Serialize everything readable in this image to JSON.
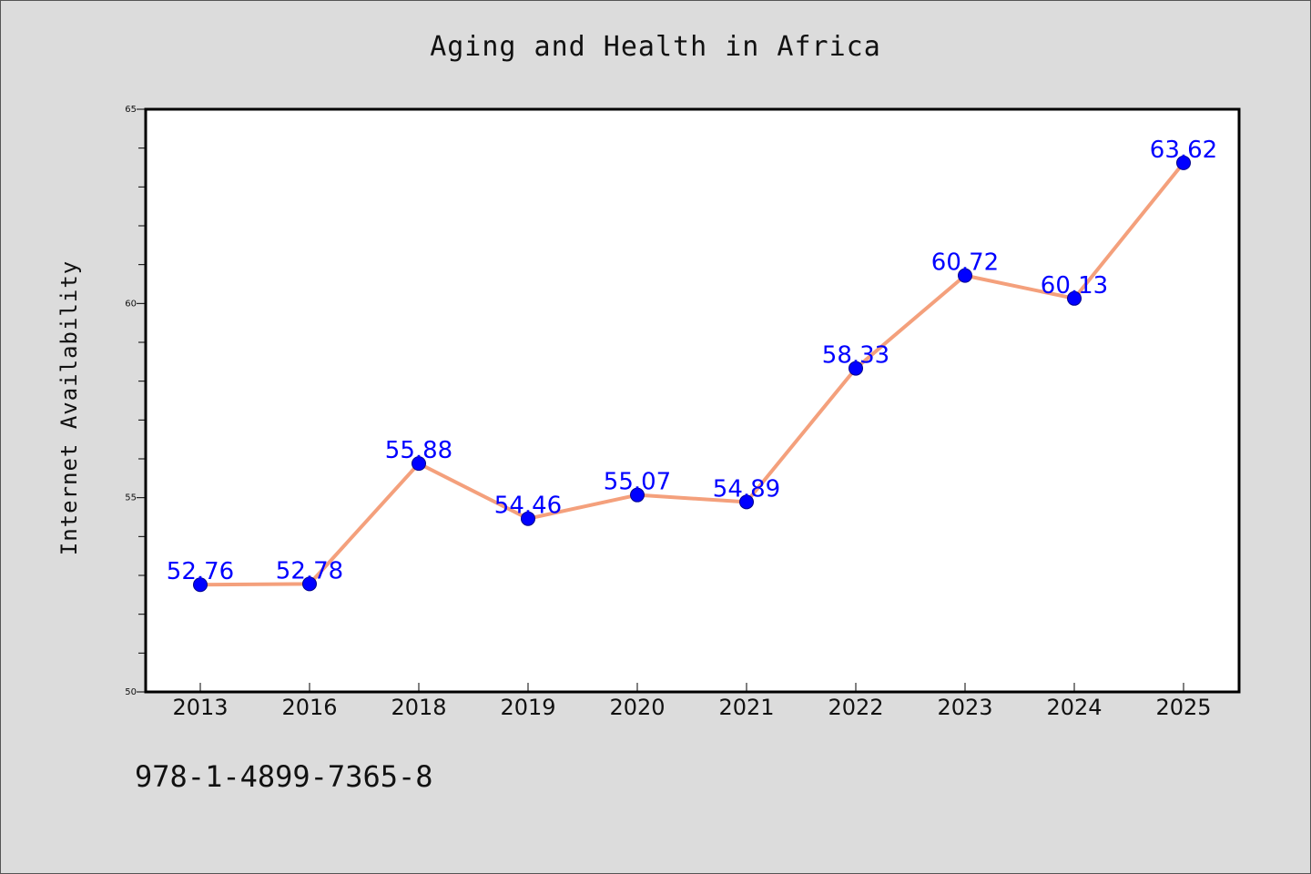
{
  "title": "Aging and Health in Africa",
  "footer_text": "978-1-4899-7365-8",
  "chart_data": {
    "type": "line",
    "title": "Aging and Health in Africa",
    "xlabel": "",
    "ylabel": "Internet Availability",
    "categories": [
      "2013",
      "2016",
      "2018",
      "2019",
      "2020",
      "2021",
      "2022",
      "2023",
      "2024",
      "2025"
    ],
    "values": [
      52.76,
      52.78,
      55.88,
      54.46,
      55.07,
      54.89,
      58.33,
      60.72,
      60.13,
      63.62
    ],
    "data_labels": [
      "52.76",
      "52.78",
      "55.88",
      "54.46",
      "55.07",
      "54.89",
      "58.33",
      "60.72",
      "60.13",
      "63.62"
    ],
    "ylim": [
      50,
      65
    ],
    "yticks": [
      50,
      55,
      60,
      65
    ],
    "grid": false,
    "legend": "none",
    "colors": {
      "line": "#f4a07c",
      "marker": "#0000ff",
      "marker_edge": "#00008b",
      "data_label": "#0000ff",
      "background": "#dcdcdc",
      "plot_background": "#ffffff"
    }
  }
}
